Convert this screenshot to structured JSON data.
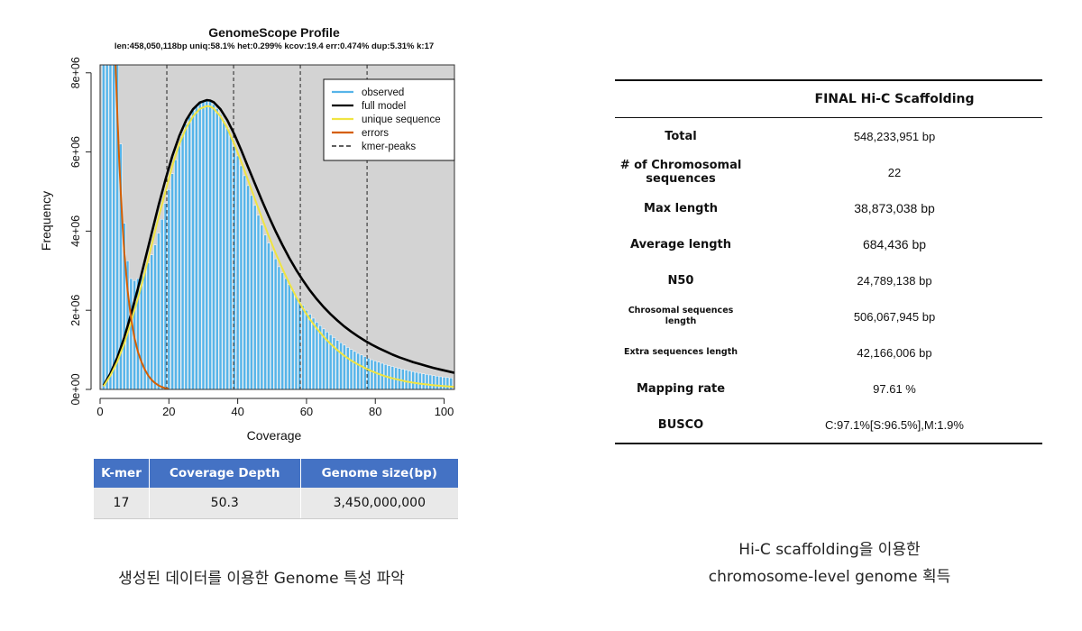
{
  "chart_data": {
    "type": "bar",
    "title": "GenomeScope Profile",
    "subtitle": "len:458,050,118bp uniq:58.1%  het:0.299% kcov:19.4 err:0.474%  dup:5.31%  k:17",
    "xlabel": "Coverage",
    "ylabel": "Frequency",
    "xlim": [
      0,
      103
    ],
    "ylim": [
      0,
      8200000
    ],
    "x_ticks": [
      0,
      20,
      40,
      60,
      80,
      100
    ],
    "x_tick_labels": [
      "0",
      "20",
      "40",
      "60",
      "80",
      "100"
    ],
    "y_ticks": [
      0,
      2000000,
      4000000,
      6000000,
      8000000
    ],
    "y_tick_labels": [
      "0e+00",
      "2e+06",
      "4e+06",
      "6e+06",
      "8e+06"
    ],
    "legend_position": "top-right",
    "legend": [
      {
        "label": "observed",
        "color": "#56b4e9",
        "style": "solid"
      },
      {
        "label": "full model",
        "color": "#000000",
        "style": "solid"
      },
      {
        "label": "unique sequence",
        "color": "#f0e442",
        "style": "solid"
      },
      {
        "label": "errors",
        "color": "#d55e00",
        "style": "solid"
      },
      {
        "label": "kmer-peaks",
        "color": "#000000",
        "style": "dashed"
      }
    ],
    "kmer_peaks": [
      19.4,
      38.8,
      58.2,
      77.6
    ],
    "series": [
      {
        "name": "observed",
        "color": "#56b4e9",
        "x": [
          1,
          2,
          3,
          4,
          5,
          6,
          7,
          8,
          9,
          10,
          11,
          12,
          13,
          14,
          15,
          16,
          17,
          18,
          19,
          20,
          21,
          22,
          23,
          24,
          25,
          26,
          27,
          28,
          29,
          30,
          31,
          32,
          33,
          34,
          35,
          36,
          37,
          38,
          39,
          40,
          41,
          42,
          43,
          44,
          45,
          46,
          47,
          48,
          49,
          50,
          51,
          52,
          53,
          54,
          55,
          56,
          57,
          58,
          59,
          60,
          61,
          62,
          63,
          64,
          65,
          66,
          67,
          68,
          69,
          70,
          71,
          72,
          73,
          74,
          75,
          76,
          77,
          78,
          79,
          80,
          81,
          82,
          83,
          84,
          85,
          86,
          87,
          88,
          89,
          90,
          91,
          92,
          93,
          94,
          95,
          96,
          97,
          98,
          99,
          100,
          101,
          102
        ],
        "values": [
          8200000,
          8200000,
          8200000,
          8200000,
          8200000,
          6200000,
          4200000,
          3250000,
          2800000,
          2750000,
          2800000,
          2900000,
          3000000,
          3200000,
          3400000,
          3650000,
          3950000,
          4300000,
          4700000,
          5050000,
          5450000,
          5800000,
          6150000,
          6450000,
          6700000,
          6900000,
          7050000,
          7150000,
          7250000,
          7300000,
          7320000,
          7280000,
          7200000,
          7100000,
          6950000,
          6800000,
          6600000,
          6400000,
          6150000,
          5900000,
          5650000,
          5400000,
          5150000,
          4900000,
          4650000,
          4400000,
          4150000,
          3900000,
          3700000,
          3500000,
          3300000,
          3100000,
          2950000,
          2800000,
          2650000,
          2500000,
          2350000,
          2250000,
          2120000,
          2000000,
          1900000,
          1800000,
          1700000,
          1610000,
          1530000,
          1450000,
          1380000,
          1310000,
          1240000,
          1180000,
          1120000,
          1060000,
          1010000,
          960000,
          910000,
          870000,
          830000,
          790000,
          750000,
          720000,
          690000,
          660000,
          630000,
          600000,
          580000,
          550000,
          530000,
          510000,
          490000,
          470000,
          450000,
          430000,
          410000,
          395000,
          380000,
          365000,
          350000,
          335000,
          320000,
          310000,
          300000,
          290000
        ]
      },
      {
        "name": "full model",
        "color": "#000000",
        "x": [
          1,
          3,
          5,
          7,
          9,
          11,
          13,
          15,
          17,
          19,
          21,
          23,
          25,
          27,
          29,
          31,
          32,
          33,
          35,
          37,
          39,
          41,
          43,
          45,
          47,
          49,
          51,
          53,
          55,
          57,
          59,
          61,
          63,
          65,
          67,
          69,
          71,
          73,
          75,
          77,
          79,
          81,
          83,
          85,
          87,
          89,
          91,
          93,
          95,
          97,
          99,
          101,
          103
        ],
        "values": [
          100000,
          400000,
          800000,
          1300000,
          1900000,
          2550000,
          3250000,
          3950000,
          4650000,
          5300000,
          5900000,
          6400000,
          6800000,
          7080000,
          7250000,
          7310000,
          7300000,
          7260000,
          7080000,
          6800000,
          6450000,
          6050000,
          5620000,
          5200000,
          4780000,
          4380000,
          4000000,
          3650000,
          3320000,
          3020000,
          2750000,
          2500000,
          2280000,
          2080000,
          1900000,
          1740000,
          1590000,
          1460000,
          1340000,
          1230000,
          1130000,
          1040000,
          960000,
          880000,
          810000,
          750000,
          690000,
          640000,
          590000,
          540000,
          500000,
          460000,
          420000
        ]
      },
      {
        "name": "unique sequence",
        "color": "#f0e442",
        "x": [
          1,
          3,
          5,
          7,
          9,
          11,
          13,
          15,
          17,
          19,
          21,
          23,
          25,
          27,
          29,
          31,
          32,
          33,
          35,
          37,
          39,
          41,
          43,
          45,
          47,
          49,
          51,
          53,
          55,
          57,
          59,
          61,
          63,
          65,
          67,
          69,
          71,
          73,
          75,
          77,
          79,
          81,
          83,
          85,
          87,
          89,
          91,
          93,
          95,
          97,
          99,
          101,
          103
        ],
        "values": [
          80000,
          350000,
          700000,
          1150000,
          1700000,
          2300000,
          2950000,
          3650000,
          4350000,
          5000000,
          5650000,
          6200000,
          6600000,
          6900000,
          7090000,
          7160000,
          7150000,
          7100000,
          6900000,
          6600000,
          6200000,
          5760000,
          5290000,
          4810000,
          4340000,
          3880000,
          3450000,
          3050000,
          2680000,
          2340000,
          2040000,
          1770000,
          1540000,
          1330000,
          1150000,
          990000,
          850000,
          730000,
          630000,
          540000,
          460000,
          390000,
          330000,
          280000,
          240000,
          200000,
          170000,
          145000,
          125000,
          105000,
          90000,
          78000,
          65000
        ]
      },
      {
        "name": "errors",
        "color": "#d55e00",
        "x": [
          4.5,
          5,
          5.5,
          6,
          6.5,
          7,
          8,
          9,
          10,
          11,
          12,
          13,
          14,
          15,
          16,
          17,
          18,
          19,
          20
        ],
        "values": [
          8200000,
          7000000,
          5900000,
          5000000,
          4200000,
          3500000,
          2500000,
          1800000,
          1300000,
          950000,
          700000,
          500000,
          350000,
          240000,
          160000,
          100000,
          60000,
          30000,
          10000
        ]
      }
    ]
  },
  "kmer_table": {
    "headers": [
      "K-mer",
      "Coverage Depth",
      "Genome size(bp)"
    ],
    "row": [
      "17",
      "50.3",
      "3,450,000,000"
    ]
  },
  "scaffolding": {
    "header": "FINAL Hi-C Scaffolding",
    "rows": [
      {
        "label": "Total",
        "value": "548,233,951 bp"
      },
      {
        "label": "# of Chromosomal sequences",
        "value": "22"
      },
      {
        "label": "Max length",
        "value": "38,873,038 bp"
      },
      {
        "label": "Average length",
        "value": "684,436 bp"
      },
      {
        "label": "N50",
        "value": "24,789,138 bp"
      },
      {
        "label": "Chrosomal sequences length",
        "value": "506,067,945 bp"
      },
      {
        "label": "Extra sequences length",
        "value": "42,166,006 bp"
      },
      {
        "label": "Mapping rate",
        "value": "97.61 %"
      },
      {
        "label": "BUSCO",
        "value": "C:97.1%[S:96.5%],M:1.9%"
      }
    ]
  },
  "captions": {
    "left": "생성된 데이터를 이용한 Genome 특성 파악",
    "right_line1": "Hi-C scaffolding을 이용한",
    "right_line2": "chromosome-level genome 획득"
  }
}
